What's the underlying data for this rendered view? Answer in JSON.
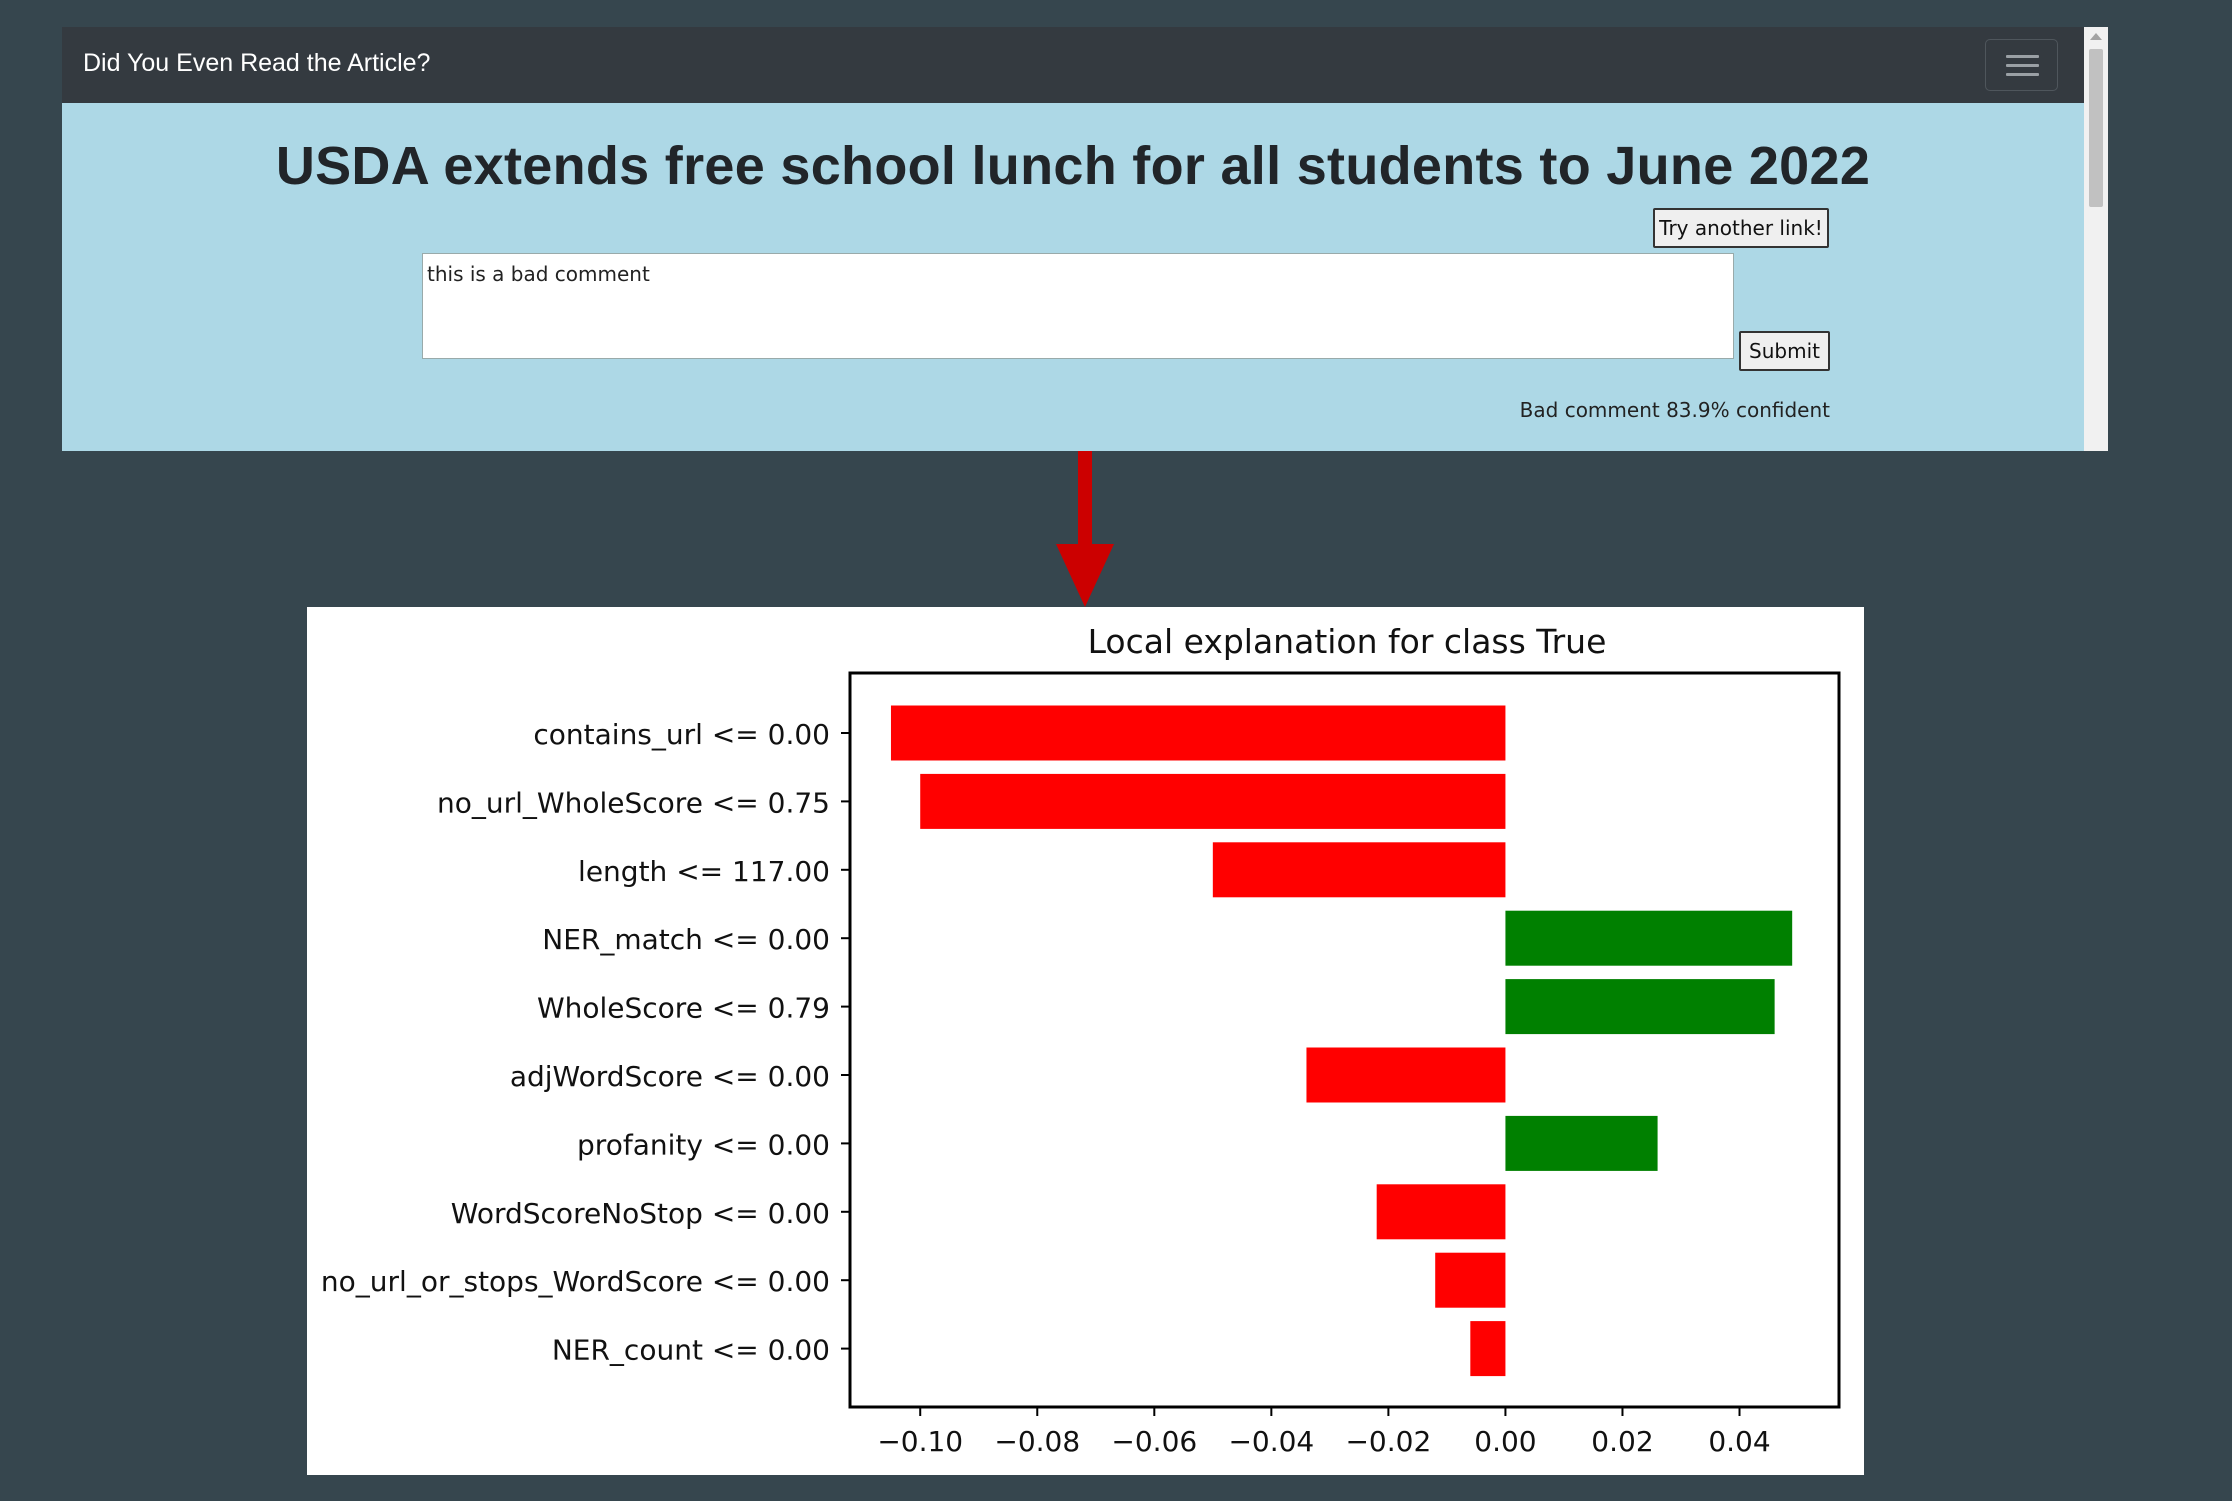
{
  "navbar": {
    "brand": "Did You Even Read the Article?",
    "menu_icon": "hamburger-menu-icon"
  },
  "article": {
    "title": "USDA extends free school lunch for all students to June 2022"
  },
  "buttons": {
    "try_another": "Try another link!",
    "submit": "Submit"
  },
  "comment": {
    "value": "this is a bad comment"
  },
  "result": {
    "text": "Bad comment 83.9% confident"
  },
  "colors": {
    "navbar": "#343a40",
    "content_bg": "#add8e6",
    "page_bg": "#36464e",
    "arrow": "#cc0000",
    "positive": "#008000",
    "negative": "#ff0000"
  },
  "chart_data": {
    "type": "bar",
    "orientation": "horizontal",
    "title": "Local explanation for class True",
    "xlabel": "",
    "ylabel": "",
    "categories": [
      "contains_url <= 0.00",
      "no_url_WholeScore <= 0.75",
      "length <= 117.00",
      "NER_match <= 0.00",
      "WholeScore <= 0.79",
      "adjWordScore <= 0.00",
      "profanity <= 0.00",
      "WordScoreNoStop <= 0.00",
      "no_url_or_stops_WordScore <= 0.00",
      "NER_count <= 0.00"
    ],
    "values": [
      -0.105,
      -0.1,
      -0.05,
      0.049,
      0.046,
      -0.034,
      0.026,
      -0.022,
      -0.012,
      -0.006
    ],
    "xlim": [
      -0.112,
      0.057
    ],
    "xticks": [
      -0.1,
      -0.08,
      -0.06,
      -0.04,
      -0.02,
      0.0,
      0.02,
      0.04
    ],
    "xtick_labels": [
      "−0.10",
      "−0.08",
      "−0.06",
      "−0.04",
      "−0.02",
      "0.00",
      "0.02",
      "0.04"
    ],
    "colors": {
      "positive": "#008000",
      "negative": "#ff0000"
    },
    "grid": false,
    "legend": "none"
  }
}
